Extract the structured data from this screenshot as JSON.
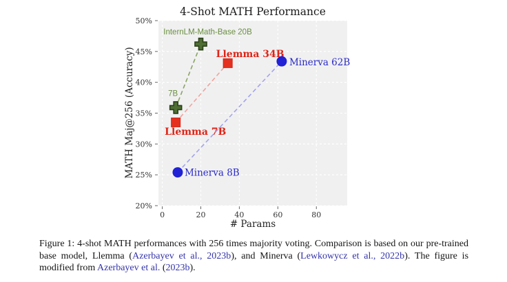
{
  "chart_data": {
    "type": "scatter",
    "title": "4-Shot MATH Performance",
    "xlabel": "# Params",
    "ylabel": "MATH Maj@256 (Accuracy)",
    "xlim": [
      -2,
      96
    ],
    "ylim": [
      20,
      50
    ],
    "xticks": [
      0,
      20,
      40,
      60,
      80
    ],
    "yticks": [
      20,
      25,
      30,
      35,
      40,
      45,
      50
    ],
    "ytick_suffix": "%",
    "grid": true,
    "legend": "none (direct point labels)",
    "background": "#f0f0f1",
    "gridline_color": "#ffffff",
    "series": [
      {
        "name": "InternLM-Math-Base",
        "marker": "plus",
        "marker_color": "#4e6e33",
        "marker_edge": "#2a3f17",
        "line_color": "#8aa562",
        "label_color": "#6a8f3f",
        "label_font": "sans",
        "label_weight": "normal",
        "label_size": 11.5,
        "points": [
          {
            "x": 7,
            "y": 35.9,
            "label": "7B",
            "anchor": "middle",
            "dx": -4,
            "dy": -17
          },
          {
            "x": 20,
            "y": 46.2,
            "label": "InternLM-Math-Base 20B",
            "anchor": "middle",
            "dx": 10,
            "dy": -14
          }
        ]
      },
      {
        "name": "Llemma",
        "marker": "square",
        "marker_color": "#e5301f",
        "marker_edge": "#d02415",
        "line_color": "#f0a49c",
        "label_color": "#e02416",
        "label_font": "serif",
        "label_weight": "bold",
        "label_size": 14,
        "points": [
          {
            "x": 7,
            "y": 33.5,
            "label": "Llemma 7B",
            "anchor": "start",
            "dx": -16,
            "dy": 18
          },
          {
            "x": 34,
            "y": 43.1,
            "label": "Llemma 34B",
            "anchor": "start",
            "dx": -17,
            "dy": -9
          }
        ]
      },
      {
        "name": "Minerva",
        "marker": "circle",
        "marker_color": "#2121d6",
        "marker_edge": "#2121d6",
        "line_color": "#a3a3ec",
        "label_color": "#2a2ac6",
        "label_font": "serif",
        "label_weight": "normal",
        "label_size": 13.5,
        "points": [
          {
            "x": 8,
            "y": 25.4,
            "label": "Minerva 8B",
            "anchor": "start",
            "dx": 10,
            "dy": 5
          },
          {
            "x": 62,
            "y": 43.4,
            "label": "Minerva 62B",
            "anchor": "start",
            "dx": 11,
            "dy": 6
          }
        ]
      }
    ]
  },
  "caption": {
    "segments": [
      {
        "style": "plain",
        "text": "Figure 1: 4-shot MATH performances with 256 times majority voting. Comparison is based on our pre-trained base model, Llemma ("
      },
      {
        "style": "cite",
        "text": "Azerbayev et al., 2023b"
      },
      {
        "style": "plain",
        "text": "), and Minerva ("
      },
      {
        "style": "cite",
        "text": "Lewkowycz et al., 2022b"
      },
      {
        "style": "plain",
        "text": "). The figure is modified from "
      },
      {
        "style": "cite",
        "text": "Azerbayev et al."
      },
      {
        "style": "plain",
        "text": " ("
      },
      {
        "style": "cite",
        "text": "2023b"
      },
      {
        "style": "plain",
        "text": ")."
      }
    ]
  }
}
